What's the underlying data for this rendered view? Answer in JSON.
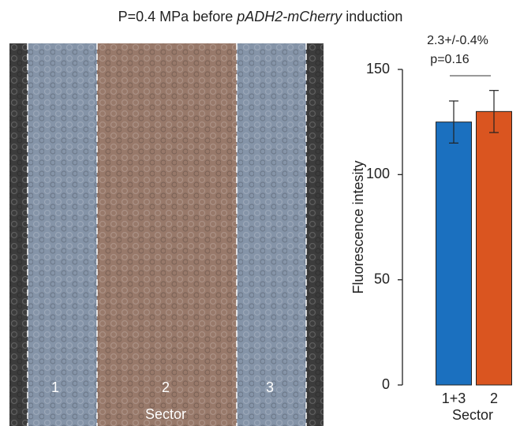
{
  "chart_data": {
    "type": "bar",
    "title": {
      "prefix": "P=0.4 MPa before",
      "italic": "pADH2-mCherry",
      "suffix": "induction"
    },
    "categories": [
      "1+3",
      "2"
    ],
    "values": [
      125,
      130
    ],
    "errors": [
      10,
      10
    ],
    "colors": [
      "#1b70bf",
      "#da5520"
    ],
    "xlabel": "Sector",
    "ylabel": "Fluorescence intesity",
    "ylim": [
      0,
      150
    ],
    "yticks": [
      0,
      50,
      100,
      150
    ],
    "annotation": [
      "2.3+/-0.4%",
      "p=0.16"
    ]
  },
  "image": {
    "sector_labels": [
      "1",
      "2",
      "3"
    ],
    "axis_label": "Sector"
  }
}
